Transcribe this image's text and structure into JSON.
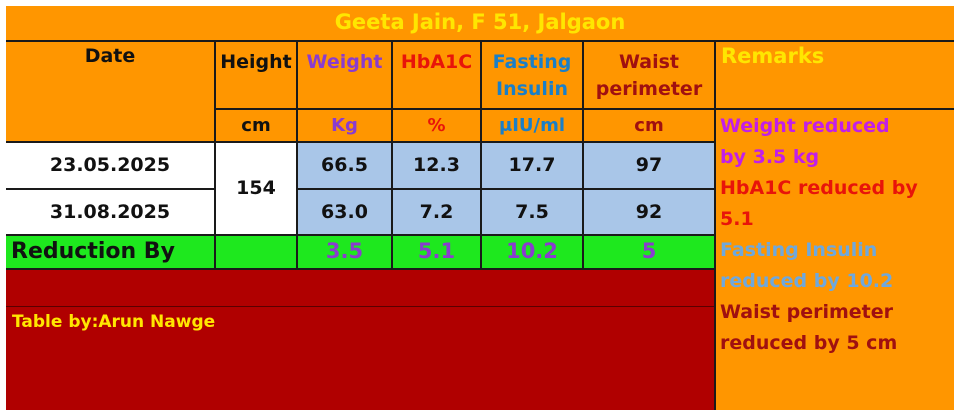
{
  "title": "Geeta Jain, F 51, Jalgaon",
  "headers": {
    "date": "Date",
    "height": "Height",
    "weight": "Weight",
    "hba1c": "HbA1C",
    "fasting_insulin_1": "Fasting",
    "fasting_insulin_2": "Insulin",
    "waist_1": "Waist",
    "waist_2": "perimeter",
    "remarks": "Remarks"
  },
  "units": {
    "height": "cm",
    "weight": "Kg",
    "hba1c": "%",
    "fasting_insulin": "μIU/ml",
    "waist": "cm"
  },
  "rows": [
    {
      "date": "23.05.2025",
      "weight": "66.5",
      "hba1c": "12.3",
      "fasting_insulin": "17.7",
      "waist": "97"
    },
    {
      "date": "31.08.2025",
      "weight": "63.0",
      "hba1c": "7.2",
      "fasting_insulin": "7.5",
      "waist": "92"
    }
  ],
  "height_value": "154",
  "reduction": {
    "label": "Reduction By",
    "weight": "3.5",
    "hba1c": "5.1",
    "fasting_insulin": "10.2",
    "waist": "5"
  },
  "remarks": [
    {
      "line1": "Weight reduced",
      "line2": "by 3.5 kg"
    },
    {
      "line1": "HbA1C reduced by",
      "line2": "5.1"
    },
    {
      "line1": "Fasting Insulin",
      "line2": "reduced by 10.2"
    },
    {
      "line1": "Waist perimeter",
      "line2": "reduced by 5 cm"
    }
  ],
  "credit": "Table by:Arun Nawge",
  "colors": {
    "orange": "#ff9600",
    "yellow_text": "#ffe600",
    "purple_text": "#8a3ccf",
    "red_text": "#e8140a",
    "teal_text": "#1a7fc8",
    "maroon_text": "#a01010",
    "magenta_text": "#c21fe8",
    "remarks_blue": "#6fa8dc",
    "green_row": "#1ee81e",
    "blue_cells": "#a9c6e8",
    "dark_red": "#b00000"
  }
}
